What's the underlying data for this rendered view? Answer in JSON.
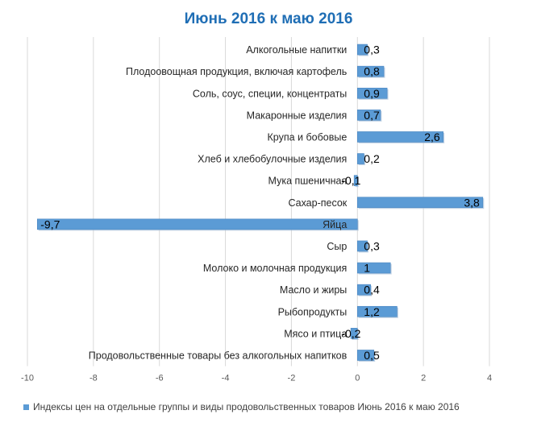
{
  "chart_data": {
    "type": "bar",
    "orientation": "horizontal",
    "title": "Июнь 2016 к маю 2016",
    "categories": [
      "Алкогольные напитки",
      "Плодоовощная продукция, включая картофель",
      "Соль, соус, специи, концентраты",
      "Макаронные изделия",
      "Крупа и бобовые",
      "Хлеб и хлебобулочные изделия",
      "Мука пшеничная",
      "Сахар-песок",
      "Яйца",
      "Сыр",
      "Молоко и молочная продукция",
      "Масло и жиры",
      "Рыбопродукты",
      "Мясо и птица",
      "Продовольственные товары без алкогольных напитков"
    ],
    "series": [
      {
        "name": "Индексы цен на отдельные группы и виды продовольственных товаров Июнь 2016 к маю 2016",
        "values": [
          0.3,
          0.8,
          0.9,
          0.7,
          2.6,
          0.2,
          -0.1,
          3.8,
          -9.7,
          0.3,
          1,
          0.4,
          1.2,
          -0.2,
          0.5
        ],
        "labels": [
          "0,3",
          "0,8",
          "0,9",
          "0,7",
          "2,6",
          "0,2",
          "-0,1",
          "3,8",
          "-9,7",
          "0,3",
          "1",
          "0,4",
          "1,2",
          "-0,2",
          "0,5"
        ]
      }
    ],
    "xlim": [
      -10,
      4
    ],
    "xticks": [
      -10,
      -8,
      -6,
      -4,
      -2,
      0,
      2,
      4
    ],
    "grid": "vertical",
    "legend": "bottom",
    "colors": {
      "bar": "#5B9BD5",
      "bar_dark": "#4A86C0",
      "title": "#1F6EB5",
      "grid": "#D9D9D9",
      "text": "#262626"
    }
  }
}
